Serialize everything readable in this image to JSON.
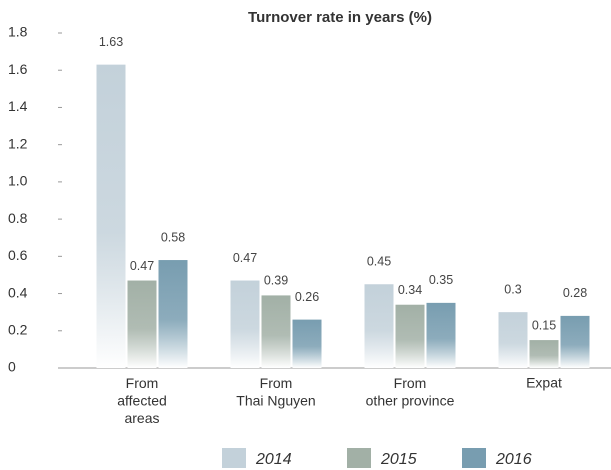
{
  "chart_data": {
    "type": "bar",
    "title": "Turnover rate in years (%)",
    "categories": [
      "From\naffected\nareas",
      "From\nThai Nguyen",
      "From\nother province",
      "Expat"
    ],
    "series": [
      {
        "name": "2014",
        "color": "#c3d1da",
        "values": [
          1.63,
          0.47,
          0.45,
          0.3
        ]
      },
      {
        "name": "2015",
        "color": "#a2b0a6",
        "values": [
          0.47,
          0.39,
          0.34,
          0.15
        ]
      },
      {
        "name": "2016",
        "color": "#789db0",
        "values": [
          0.58,
          0.26,
          0.35,
          0.28
        ]
      }
    ],
    "ylim": [
      0,
      1.8
    ],
    "yticks": [
      0,
      0.2,
      0.4,
      0.6,
      0.8,
      {
        "value": 1,
        "label": "1.0"
      },
      1.2,
      1.4,
      1.6,
      1.8
    ],
    "grid": false
  }
}
